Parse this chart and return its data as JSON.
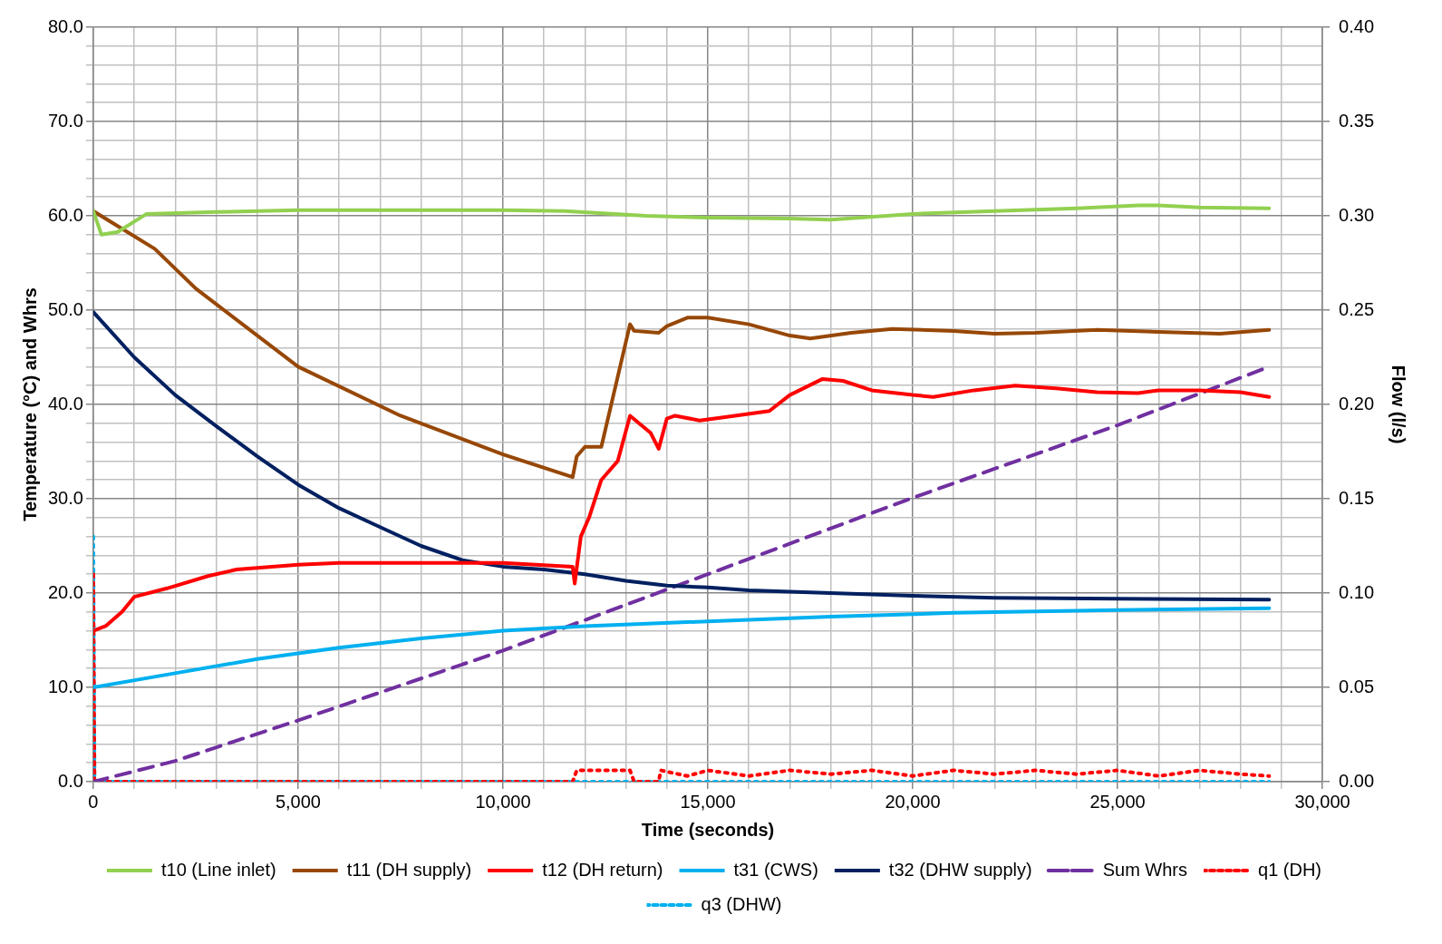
{
  "chart_data": {
    "type": "line",
    "xlabel": "Time (seconds)",
    "ylabel": "Temperature (°C) and Whrs",
    "y2label": "Flow (l/s)",
    "xlim": [
      0,
      30000
    ],
    "xticks": [
      0,
      {
        "value": 1000,
        "label": null
      },
      {
        "value": 2000,
        "label": null
      },
      {
        "value": 3000,
        "label": null
      },
      {
        "value": 4000,
        "label": null
      },
      {
        "value": 5000,
        "label": "5,000"
      },
      {
        "value": 6000,
        "label": null
      },
      {
        "value": 7000,
        "label": null
      },
      {
        "value": 8000,
        "label": null
      },
      {
        "value": 9000,
        "label": null
      },
      {
        "value": 10000,
        "label": "10,000"
      },
      {
        "value": 11000,
        "label": null
      },
      {
        "value": 12000,
        "label": null
      },
      {
        "value": 13000,
        "label": null
      },
      {
        "value": 14000,
        "label": null
      },
      {
        "value": 15000,
        "label": "15,000"
      },
      {
        "value": 16000,
        "label": null
      },
      {
        "value": 17000,
        "label": null
      },
      {
        "value": 18000,
        "label": null
      },
      {
        "value": 19000,
        "label": null
      },
      {
        "value": 20000,
        "label": "20,000"
      },
      {
        "value": 21000,
        "label": null
      },
      {
        "value": 22000,
        "label": null
      },
      {
        "value": 23000,
        "label": null
      },
      {
        "value": 24000,
        "label": null
      },
      {
        "value": 25000,
        "label": "25,000"
      },
      {
        "value": 26000,
        "label": null
      },
      {
        "value": 27000,
        "label": null
      },
      {
        "value": 28000,
        "label": null
      },
      {
        "value": 29000,
        "label": null
      },
      {
        "value": 30000,
        "label": "30,000"
      }
    ],
    "ylim": [
      0,
      80
    ],
    "yticks": [
      {
        "value": 0,
        "label": "0.0"
      },
      {
        "value": 2,
        "label": null
      },
      {
        "value": 4,
        "label": null
      },
      {
        "value": 6,
        "label": null
      },
      {
        "value": 8,
        "label": null
      },
      {
        "value": 10,
        "label": "10.0"
      },
      {
        "value": 12,
        "label": null
      },
      {
        "value": 14,
        "label": null
      },
      {
        "value": 16,
        "label": null
      },
      {
        "value": 18,
        "label": null
      },
      {
        "value": 20,
        "label": "20.0"
      },
      {
        "value": 22,
        "label": null
      },
      {
        "value": 24,
        "label": null
      },
      {
        "value": 26,
        "label": null
      },
      {
        "value": 28,
        "label": null
      },
      {
        "value": 30,
        "label": "30.0"
      },
      {
        "value": 32,
        "label": null
      },
      {
        "value": 34,
        "label": null
      },
      {
        "value": 36,
        "label": null
      },
      {
        "value": 38,
        "label": null
      },
      {
        "value": 40,
        "label": "40.0"
      },
      {
        "value": 42,
        "label": null
      },
      {
        "value": 44,
        "label": null
      },
      {
        "value": 46,
        "label": null
      },
      {
        "value": 48,
        "label": null
      },
      {
        "value": 50,
        "label": "50.0"
      },
      {
        "value": 52,
        "label": null
      },
      {
        "value": 54,
        "label": null
      },
      {
        "value": 56,
        "label": null
      },
      {
        "value": 58,
        "label": null
      },
      {
        "value": 60,
        "label": "60.0"
      },
      {
        "value": 62,
        "label": null
      },
      {
        "value": 64,
        "label": null
      },
      {
        "value": 66,
        "label": null
      },
      {
        "value": 68,
        "label": null
      },
      {
        "value": 70,
        "label": "70.0"
      },
      {
        "value": 72,
        "label": null
      },
      {
        "value": 74,
        "label": null
      },
      {
        "value": 76,
        "label": null
      },
      {
        "value": 78,
        "label": null
      },
      {
        "value": 80,
        "label": "80.0"
      }
    ],
    "y2lim": [
      0,
      0.4
    ],
    "y2ticks": [
      {
        "value": 0,
        "label": "0.00"
      },
      {
        "value": 0.05,
        "label": "0.05"
      },
      {
        "value": 0.1,
        "label": "0.10"
      },
      {
        "value": 0.15,
        "label": "0.15"
      },
      {
        "value": 0.2,
        "label": "0.20"
      },
      {
        "value": 0.25,
        "label": "0.25"
      },
      {
        "value": 0.3,
        "label": "0.30"
      },
      {
        "value": 0.35,
        "label": "0.35"
      },
      {
        "value": 0.4,
        "label": "0.40"
      }
    ],
    "grid": true,
    "legend": "bottom",
    "marker": "none",
    "series": [
      {
        "name": "t10 (Line inlet)",
        "color": "#92d050",
        "line_style": "solid",
        "x": [
          0,
          200,
          600,
          1300,
          3000,
          5000,
          8000,
          10000,
          11500,
          13500,
          15000,
          17000,
          18000,
          20000,
          22000,
          24000,
          25500,
          26000,
          27000,
          28700
        ],
        "values": [
          60.5,
          58,
          58.3,
          60.2,
          60.4,
          60.6,
          60.6,
          60.6,
          60.5,
          60,
          59.8,
          59.7,
          59.6,
          60.2,
          60.5,
          60.8,
          61.1,
          61.1,
          60.9,
          60.8
        ]
      },
      {
        "name": "t11 (DH supply)",
        "color": "#974706",
        "line_style": "solid",
        "x": [
          0,
          1500,
          2500,
          5000,
          7500,
          10000,
          11700,
          11800,
          12000,
          12400,
          13100,
          13200,
          13800,
          14000,
          14500,
          15000,
          16000,
          17000,
          17500,
          18500,
          19500,
          21000,
          22000,
          23000,
          24500,
          26000,
          27500,
          28700
        ],
        "values": [
          60.5,
          56.5,
          52.3,
          44,
          38.8,
          34.7,
          32.3,
          34.5,
          35.5,
          35.5,
          48.5,
          47.8,
          47.6,
          48.3,
          49.2,
          49.2,
          48.5,
          47.3,
          47,
          47.6,
          48,
          47.8,
          47.5,
          47.6,
          47.9,
          47.7,
          47.5,
          47.9
        ]
      },
      {
        "name": "t12 (DH return)",
        "color": "#ff0000",
        "line_style": "solid",
        "x": [
          0,
          300,
          700,
          1000,
          1800,
          2800,
          3500,
          5000,
          6000,
          10000,
          11700,
          11750,
          11900,
          12100,
          12400,
          12800,
          13100,
          13600,
          13800,
          14000,
          14200,
          14800,
          15500,
          16500,
          17000,
          17800,
          18300,
          19000,
          20000,
          20500,
          21500,
          22500,
          23500,
          24500,
          25500,
          26000,
          27000,
          28000,
          28700
        ],
        "values": [
          16,
          16.5,
          18,
          19.6,
          20.5,
          21.8,
          22.5,
          23,
          23.2,
          23.2,
          22.8,
          21,
          26,
          28,
          32,
          34,
          38.8,
          37,
          35.3,
          38.5,
          38.8,
          38.3,
          38.7,
          39.3,
          41,
          42.7,
          42.5,
          41.5,
          41,
          40.8,
          41.5,
          42,
          41.7,
          41.3,
          41.2,
          41.5,
          41.5,
          41.3,
          40.8
        ]
      },
      {
        "name": "t31 (CWS)",
        "color": "#00b0f0",
        "line_style": "solid",
        "x": [
          0,
          2000,
          4000,
          6000,
          8000,
          10000,
          12000,
          15000,
          18000,
          21000,
          25000,
          28700
        ],
        "values": [
          10,
          11.5,
          13,
          14.2,
          15.2,
          16,
          16.5,
          17,
          17.5,
          17.9,
          18.2,
          18.4
        ]
      },
      {
        "name": "t32 (DHW supply)",
        "color": "#002060",
        "line_style": "solid",
        "x": [
          0,
          1000,
          2000,
          3000,
          4000,
          5000,
          6000,
          7000,
          8000,
          9000,
          10000,
          11000,
          12000,
          13000,
          14000,
          15000,
          16000,
          18000,
          20000,
          22000,
          25000,
          28700
        ],
        "values": [
          49.8,
          45,
          41,
          37.7,
          34.5,
          31.5,
          29,
          27,
          25,
          23.5,
          22.8,
          22.5,
          22,
          21.3,
          20.8,
          20.6,
          20.3,
          20,
          19.7,
          19.5,
          19.4,
          19.3
        ]
      },
      {
        "name": "Sum Whrs",
        "color": "#7030a0",
        "line_style": "dashed",
        "x": [
          0,
          2000,
          5000,
          10000,
          15000,
          20000,
          25000,
          28700
        ],
        "values": [
          0,
          2.2,
          6.5,
          13.9,
          22,
          30.1,
          37.8,
          44
        ]
      },
      {
        "name": "q1 (DH)",
        "color": "#ff0000",
        "line_style": "dotted",
        "axis": "y2",
        "x": [
          0,
          30,
          11700,
          11800,
          13100,
          13200,
          13800,
          13850,
          14500,
          15000,
          16000,
          17000,
          18000,
          19000,
          20000,
          21000,
          22000,
          23000,
          24000,
          25000,
          26000,
          27000,
          28000,
          28700
        ],
        "values": [
          0.11,
          0,
          0,
          0.006,
          0.006,
          0,
          0,
          0.006,
          0.003,
          0.006,
          0.003,
          0.006,
          0.004,
          0.006,
          0.003,
          0.006,
          0.004,
          0.006,
          0.004,
          0.006,
          0.003,
          0.006,
          0.004,
          0.003
        ]
      },
      {
        "name": "q3 (DHW)",
        "color": "#00b0f0",
        "line_style": "dotted",
        "axis": "y2",
        "x": [
          0,
          30,
          28700
        ],
        "values": [
          0.13,
          0,
          0
        ]
      }
    ]
  }
}
